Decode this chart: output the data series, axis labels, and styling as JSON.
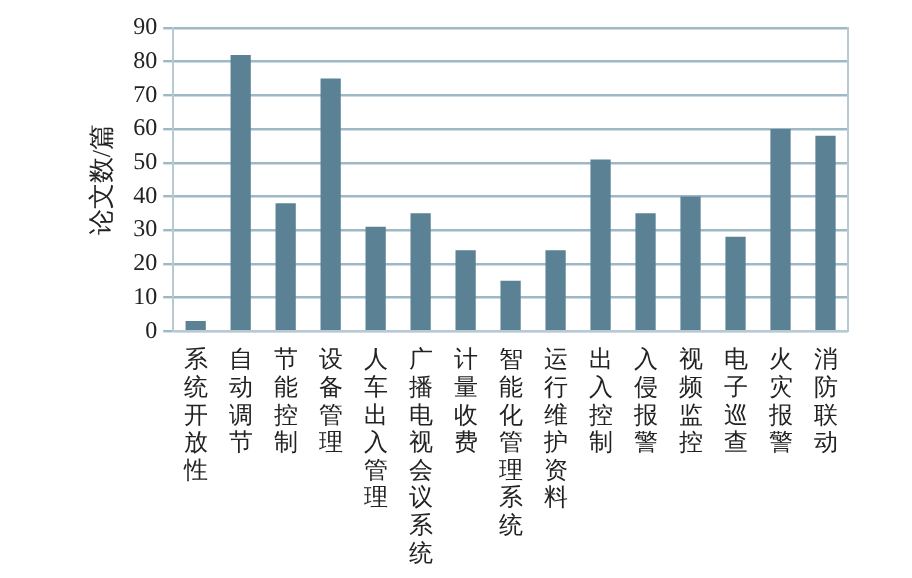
{
  "chart_data": {
    "type": "bar",
    "ylabel": "论文数/篇",
    "categories": [
      "系统开放性",
      "自动调节",
      "节能控制",
      "设备管理",
      "人车出入管理",
      "广播电视会议系统",
      "计量收费",
      "智能化管理系统",
      "运行维护资料",
      "出入控制",
      "入侵报警",
      "视频监控",
      "电子巡查",
      "火灾报警",
      "消防联动"
    ],
    "values": [
      3,
      82,
      38,
      75,
      31,
      35,
      24,
      15,
      24,
      51,
      35,
      40,
      28,
      60,
      58
    ],
    "color": "#5a8194",
    "ylim": [
      0,
      90
    ],
    "yticks": [
      0,
      10,
      20,
      30,
      40,
      50,
      60,
      70,
      80,
      90
    ],
    "grid": "y",
    "legend": false
  }
}
